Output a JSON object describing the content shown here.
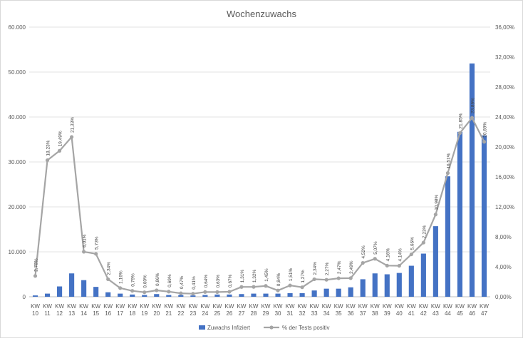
{
  "chart_data": {
    "type": "bar+line",
    "title": "Wochenzuwachs",
    "categories": [
      "KW 10",
      "KW 11",
      "KW 12",
      "KW 13",
      "KW 14",
      "KW 15",
      "KW 16",
      "KW 17",
      "KW 18",
      "KW 19",
      "KW 20",
      "KW 21",
      "KW 22",
      "KW 23",
      "KW 24",
      "KW 25",
      "KW 26",
      "KW 27",
      "KW 28",
      "KW 29",
      "KW 30",
      "KW 31",
      "KW 32",
      "KW 33",
      "KW 34",
      "KW 35",
      "KW 36",
      "KW 37",
      "KW 38",
      "KW 39",
      "KW 40",
      "KW 41",
      "KW 42",
      "KW 43",
      "KW 44",
      "KW 45",
      "KW 46",
      "KW 47"
    ],
    "category_lines": [
      [
        "KW",
        "10"
      ],
      [
        "KW",
        "11"
      ],
      [
        "KW",
        "12"
      ],
      [
        "KW",
        "13"
      ],
      [
        "KW",
        "14"
      ],
      [
        "KW",
        "15"
      ],
      [
        "KW",
        "16"
      ],
      [
        "KW",
        "17"
      ],
      [
        "KW",
        "18"
      ],
      [
        "KW",
        "19"
      ],
      [
        "KW",
        "20"
      ],
      [
        "KW",
        "21"
      ],
      [
        "KW",
        "22"
      ],
      [
        "KW",
        "23"
      ],
      [
        "KW",
        "24"
      ],
      [
        "KW",
        "25"
      ],
      [
        "KW",
        "26"
      ],
      [
        "KW",
        "27"
      ],
      [
        "KW",
        "28"
      ],
      [
        "KW",
        "29"
      ],
      [
        "KW",
        "30"
      ],
      [
        "KW",
        "31"
      ],
      [
        "KW",
        "32"
      ],
      [
        "KW",
        "33"
      ],
      [
        "KW",
        "34"
      ],
      [
        "KW",
        "35"
      ],
      [
        "KW",
        "36"
      ],
      [
        "KW",
        "37"
      ],
      [
        "KW",
        "38"
      ],
      [
        "KW",
        "39"
      ],
      [
        "KW",
        "40"
      ],
      [
        "KW",
        "41"
      ],
      [
        "KW",
        "42"
      ],
      [
        "KW",
        "43"
      ],
      [
        "KW",
        "44"
      ],
      [
        "KW",
        "45"
      ],
      [
        "KW",
        "46"
      ],
      [
        "KW",
        "47"
      ]
    ],
    "series": [
      {
        "name": "Zuwachs Infiziert",
        "type": "bar",
        "axis": "left",
        "color": "#4472c4",
        "values": [
          300,
          700,
          2300,
          5200,
          3700,
          2200,
          1000,
          700,
          500,
          400,
          600,
          400,
          400,
          300,
          400,
          500,
          500,
          600,
          700,
          700,
          700,
          800,
          800,
          1400,
          1800,
          1800,
          2100,
          3900,
          5200,
          5000,
          5300,
          6900,
          9600,
          15700,
          26800,
          36700,
          51900,
          35900
        ]
      },
      {
        "name": "% der Tests positiv",
        "type": "line",
        "axis": "right",
        "color": "#a5a5a5",
        "values": [
          2.78,
          18.23,
          19.49,
          21.33,
          6.01,
          5.73,
          2.34,
          1.16,
          0.79,
          0.6,
          0.86,
          0.69,
          0.47,
          0.41,
          0.64,
          0.63,
          0.67,
          1.31,
          1.32,
          1.45,
          0.84,
          1.51,
          1.27,
          2.34,
          2.27,
          2.47,
          2.49,
          4.52,
          5.07,
          4.16,
          4.14,
          5.66,
          7.23,
          10.98,
          16.51,
          21.85,
          23.89,
          20.69
        ],
        "labels": [
          "2,78%",
          "18,23%",
          "19,49%",
          "21,33%",
          "6,01%",
          "5,73%",
          "2,34%",
          "1,16%",
          "0,79%",
          "0,60%",
          "0,86%",
          "0,69%",
          "0,47%",
          "0,41%",
          "0,64%",
          "0,63%",
          "0,67%",
          "1,31%",
          "1,32%",
          "1,45%",
          "0,84%",
          "1,51%",
          "1,27%",
          "2,34%",
          "2,27%",
          "2,47%",
          "2,49%",
          "4,52%",
          "5,07%",
          "4,16%",
          "4,14%",
          "5,66%",
          "7,23%",
          "10,98%",
          "16,51%",
          "21,85%",
          "23,89%",
          "20,69%"
        ]
      }
    ],
    "y_left": {
      "ylim": [
        0,
        60000
      ],
      "ticks": [
        0,
        10000,
        20000,
        30000,
        40000,
        50000,
        60000
      ],
      "tick_labels": [
        "0",
        "10.000",
        "20.000",
        "30.000",
        "40.000",
        "50.000",
        "60.000"
      ]
    },
    "y_right": {
      "ylim": [
        0,
        36
      ],
      "ticks": [
        0,
        4,
        8,
        12,
        16,
        20,
        24,
        28,
        32,
        36
      ],
      "tick_labels": [
        "0,00%",
        "4,00%",
        "8,00%",
        "12,00%",
        "16,00%",
        "20,00%",
        "24,00%",
        "28,00%",
        "32,00%",
        "36,00%"
      ]
    },
    "grid": true,
    "legend": "bottom"
  }
}
